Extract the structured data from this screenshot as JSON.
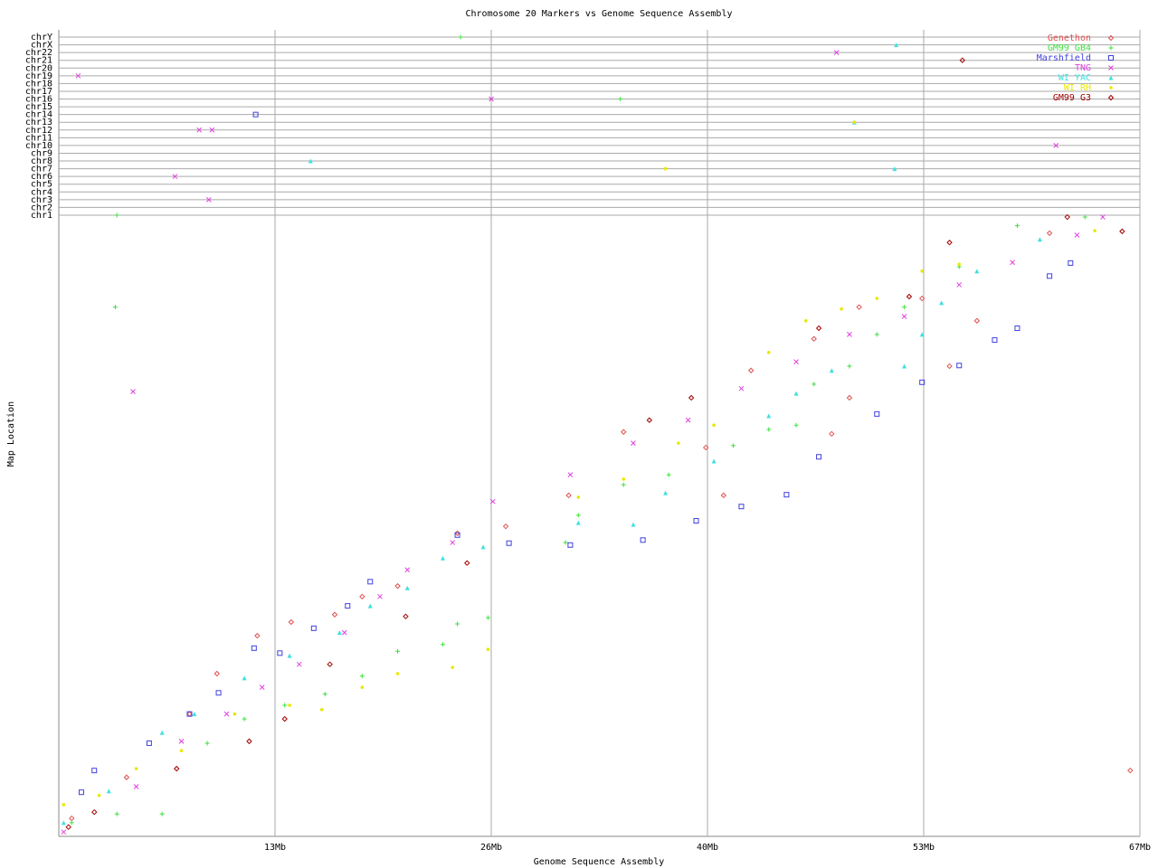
{
  "chart_data": [
    {
      "type": "scatter",
      "title": "Chromosome 20 Markers vs Genome Sequence Assembly",
      "xlabel": "Genome Sequence Assembly",
      "ylabel": "Map Location",
      "xlim": [
        0,
        67
      ],
      "ylim": [
        0,
        100
      ],
      "xticks": [
        {
          "value": 13.4,
          "label": "13Mb"
        },
        {
          "value": 26.8,
          "label": "26Mb"
        },
        {
          "value": 40.2,
          "label": "40Mb"
        },
        {
          "value": 53.6,
          "label": "53Mb"
        },
        {
          "value": 67,
          "label": "67Mb"
        }
      ],
      "grid": true,
      "legend": "upper right",
      "series": [
        {
          "name": "Genethon",
          "color": "#e05050",
          "marker": "diamond",
          "x": [
            0.8,
            4.2,
            8.1,
            9.8,
            12.3,
            14.4,
            17.1,
            18.8,
            21.0,
            24.7,
            27.7,
            31.6,
            35.0,
            40.1,
            42.9,
            46.8,
            49.6,
            53.5,
            56.9,
            61.4,
            41.2,
            47.9,
            55.2,
            66.4,
            49.0
          ],
          "values": [
            2.9,
            9.5,
            19.7,
            26.2,
            32.3,
            34.5,
            35.7,
            38.6,
            40.3,
            48.8,
            49.9,
            54.9,
            65.1,
            62.6,
            75.0,
            80.1,
            85.2,
            86.6,
            83.0,
            97.1,
            54.9,
            64.8,
            75.7,
            10.6,
            70.6
          ]
        },
        {
          "name": "GM99 GB4",
          "color": "#40e040",
          "marker": "plus",
          "x": [
            0.8,
            3.6,
            6.4,
            9.2,
            11.5,
            14.0,
            16.5,
            18.8,
            21.0,
            23.8,
            24.7,
            26.6,
            31.4,
            32.2,
            35.0,
            37.8,
            41.8,
            44.0,
            45.7,
            46.8,
            49.0,
            50.7,
            52.4,
            55.8,
            59.4,
            63.6,
            3.5
          ],
          "values": [
            2.2,
            3.6,
            3.6,
            15.0,
            18.9,
            21.1,
            22.9,
            25.8,
            29.8,
            30.9,
            34.2,
            35.2,
            47.3,
            51.7,
            56.6,
            58.2,
            62.9,
            65.5,
            66.2,
            72.8,
            75.7,
            80.8,
            85.2,
            91.7,
            98.3,
            99.7,
            85.2
          ]
        },
        {
          "name": "Marshfield",
          "color": "#4040e0",
          "marker": "square",
          "x": [
            1.4,
            2.2,
            5.6,
            8.1,
            9.9,
            12.1,
            13.7,
            15.8,
            17.9,
            19.3,
            24.7,
            27.9,
            31.7,
            36.2,
            39.5,
            42.3,
            45.1,
            47.1,
            50.7,
            53.5,
            55.8,
            58.0,
            59.4,
            61.4,
            62.7
          ],
          "values": [
            7.1,
            10.6,
            15.0,
            19.7,
            23.1,
            30.3,
            29.5,
            33.5,
            37.1,
            41.0,
            48.5,
            47.2,
            46.9,
            47.7,
            50.8,
            53.1,
            55.0,
            61.1,
            68.0,
            73.1,
            75.8,
            79.9,
            81.8,
            90.2,
            92.3
          ]
        },
        {
          "name": "TNG",
          "color": "#e040e0",
          "marker": "x",
          "x": [
            0.3,
            4.8,
            7.6,
            10.4,
            12.6,
            14.9,
            17.7,
            19.9,
            21.6,
            24.4,
            26.9,
            31.7,
            35.6,
            39.0,
            42.3,
            45.7,
            49.0,
            52.4,
            55.8,
            59.1,
            63.1,
            64.7,
            4.6
          ],
          "values": [
            0.7,
            8.0,
            15.3,
            19.7,
            24.0,
            27.7,
            32.8,
            38.6,
            42.9,
            47.3,
            53.9,
            58.2,
            63.3,
            67.0,
            72.1,
            76.4,
            80.8,
            83.7,
            88.8,
            92.4,
            96.8,
            99.7,
            71.6
          ]
        },
        {
          "name": "WI YAC",
          "color": "#40e0e0",
          "marker": "triangle",
          "x": [
            0.3,
            3.1,
            6.4,
            8.4,
            11.5,
            14.3,
            17.4,
            19.3,
            21.6,
            23.8,
            26.3,
            32.2,
            35.6,
            37.6,
            40.6,
            44.0,
            45.7,
            47.9,
            52.4,
            53.5,
            54.7,
            56.9,
            60.8
          ],
          "values": [
            2.2,
            7.3,
            16.7,
            19.7,
            25.5,
            29.1,
            32.8,
            37.1,
            40.0,
            44.8,
            46.6,
            50.5,
            50.2,
            55.3,
            60.4,
            67.7,
            71.3,
            75.0,
            75.7,
            80.8,
            85.9,
            91.0,
            96.1
          ]
        },
        {
          "name": "WI RH",
          "color": "#e8e800",
          "marker": "dot",
          "x": [
            0.3,
            2.5,
            4.8,
            7.6,
            10.9,
            14.3,
            16.3,
            18.8,
            21.0,
            24.4,
            26.6,
            32.2,
            35.0,
            38.4,
            40.6,
            44.0,
            46.3,
            48.5,
            50.7,
            53.5,
            55.8,
            64.2
          ],
          "values": [
            5.1,
            6.6,
            10.9,
            13.8,
            19.7,
            21.1,
            20.4,
            24.0,
            26.2,
            27.2,
            30.1,
            54.6,
            57.5,
            63.3,
            66.2,
            77.9,
            83.0,
            84.9,
            86.6,
            91.0,
            92.1,
            97.5
          ]
        },
        {
          "name": "GM99 G3",
          "color": "#a00000",
          "marker": "diamond",
          "x": [
            0.6,
            2.2,
            7.3,
            11.8,
            14.0,
            16.8,
            21.5,
            25.3,
            36.6,
            39.2,
            47.1,
            52.7,
            55.2,
            62.5,
            65.9
          ],
          "values": [
            1.5,
            3.9,
            10.9,
            15.3,
            18.9,
            27.7,
            35.4,
            44.0,
            67.0,
            70.6,
            81.8,
            86.9,
            95.6,
            99.7,
            97.4
          ]
        }
      ]
    },
    {
      "type": "strip",
      "xlim": [
        0,
        67
      ],
      "categories": [
        "chr1",
        "chr2",
        "chr3",
        "chr4",
        "chr5",
        "chr6",
        "chr7",
        "chr8",
        "chr9",
        "chr10",
        "chr11",
        "chr12",
        "chr13",
        "chr14",
        "chr15",
        "chr16",
        "chr17",
        "chr18",
        "chr19",
        "chr20",
        "chr21",
        "chr22",
        "chrX",
        "chrY"
      ],
      "series": [
        {
          "color": "#40e040",
          "marker": "plus",
          "x": [
            24.9,
            34.8,
            3.6
          ],
          "values": [
            "chrY",
            "chr16",
            "chr1"
          ]
        },
        {
          "color": "#4040e0",
          "marker": "square",
          "x": [
            12.2
          ],
          "values": [
            "chr14"
          ]
        },
        {
          "color": "#e040e0",
          "marker": "x",
          "x": [
            1.2,
            8.7,
            9.5,
            7.2,
            9.3,
            26.8,
            48.2,
            61.8
          ],
          "values": [
            "chr19",
            "chr12",
            "chr12",
            "chr6",
            "chr3",
            "chr16",
            "chr22",
            "chr10"
          ]
        },
        {
          "color": "#40e0e0",
          "marker": "triangle",
          "x": [
            51.9,
            49.3,
            51.8,
            15.6
          ],
          "values": [
            "chrX",
            "chr13",
            "chr7",
            "chr8"
          ]
        },
        {
          "color": "#e8e800",
          "marker": "dot",
          "x": [
            37.6,
            49.3
          ],
          "values": [
            "chr7",
            "chr13"
          ]
        },
        {
          "color": "#a00000",
          "marker": "diamond",
          "x": [
            56.0
          ],
          "values": [
            "chr21"
          ]
        }
      ]
    }
  ]
}
